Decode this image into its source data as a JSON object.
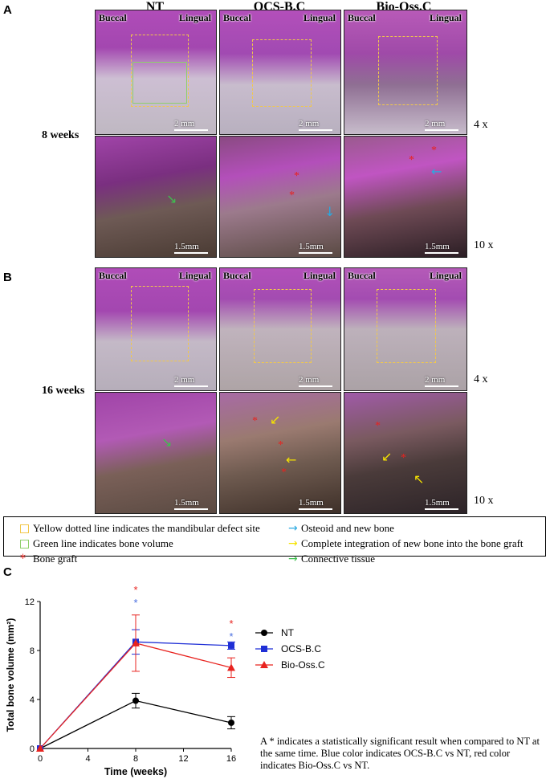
{
  "panels": {
    "A": "A",
    "B": "B",
    "C": "C"
  },
  "columns": [
    "NT",
    "OCS-B.C",
    "Bio-Oss.C"
  ],
  "rows": {
    "A": "8 weeks",
    "B": "16 weeks"
  },
  "orientation": {
    "buccal": "Buccal",
    "lingual": "Lingual"
  },
  "magnification": {
    "low": "4 x",
    "high": "10 x"
  },
  "scale_bars": {
    "low": "2 mm",
    "high": "1.5mm"
  },
  "legend": [
    {
      "text": "Yellow dotted line indicates the mandibular defect site",
      "marker": "square",
      "color": "#f2c84a"
    },
    {
      "text": "Green line indicates bone volume",
      "marker": "square",
      "color": "#8ed06a"
    },
    {
      "text": "Bone graft",
      "marker": "asterisk",
      "color": "#e8231f"
    },
    {
      "text": "Osteoid and new bone",
      "marker": "arrow",
      "color": "#2aa9e0"
    },
    {
      "text": "Complete integration of new bone into the bone graft",
      "marker": "arrow",
      "color": "#f5e300"
    },
    {
      "text": "Connective tissue",
      "marker": "arrow",
      "color": "#3fbf4f"
    }
  ],
  "chart_data": {
    "type": "line",
    "xlabel": "Time  (weeks)",
    "ylabel": "Total bone volume (mm²)",
    "x": [
      0,
      8,
      16
    ],
    "xticks": [
      0,
      4,
      8,
      12,
      16
    ],
    "yticks": [
      0,
      4,
      8,
      12
    ],
    "xlim": [
      0,
      16
    ],
    "ylim": [
      0,
      12
    ],
    "grid": false,
    "legend_position": "right",
    "series": [
      {
        "name": "NT",
        "color": "#000000",
        "marker": "circle",
        "values": [
          0,
          3.9,
          2.1
        ],
        "errors": [
          0,
          0.6,
          0.5
        ]
      },
      {
        "name": "OCS-B.C",
        "color": "#1f2fd6",
        "marker": "square",
        "values": [
          0,
          8.7,
          8.4
        ],
        "errors": [
          0,
          1.0,
          0.3
        ]
      },
      {
        "name": "Bio-Oss.C",
        "color": "#e8231f",
        "marker": "triangle",
        "values": [
          0,
          8.6,
          6.6
        ],
        "errors": [
          0,
          2.3,
          0.8
        ]
      }
    ],
    "significance": [
      {
        "x": 8,
        "marks": [
          {
            "symbol": "*",
            "color": "#e8231f"
          },
          {
            "symbol": "*",
            "color": "#4a6fe0"
          }
        ]
      },
      {
        "x": 16,
        "marks": [
          {
            "symbol": "*",
            "color": "#e8231f"
          },
          {
            "symbol": "*",
            "color": "#4a6fe0"
          }
        ]
      }
    ]
  },
  "note": "A * indicates a statistically significant result when compared to NT at the same time. Blue color indicates OCS-B.C vs NT, red color indicates Bio-Oss.C vs NT."
}
